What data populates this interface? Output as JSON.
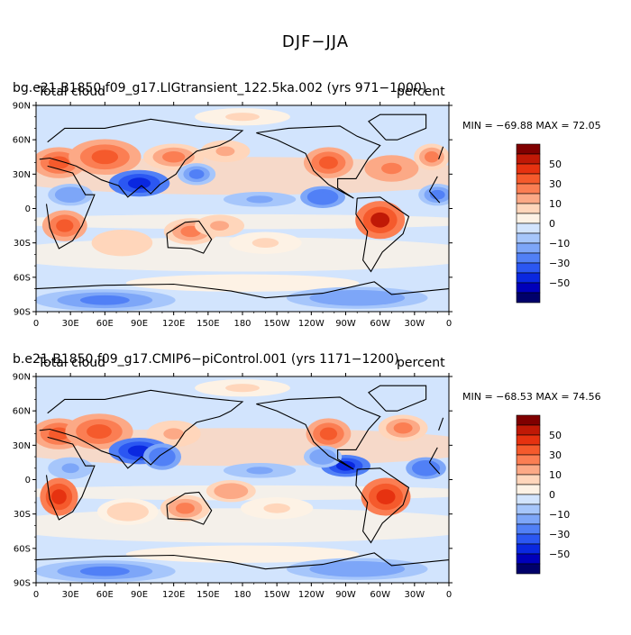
{
  "figure": {
    "title": "DJF−JJA"
  },
  "colorbar": {
    "colors": [
      "#00006a",
      "#0000ba",
      "#0a28e0",
      "#2b57f2",
      "#5180f6",
      "#7da6f8",
      "#a6c6fb",
      "#d2e4fd",
      "#fdf2e5",
      "#ffd6bb",
      "#fca986",
      "#fb7e53",
      "#f55a2c",
      "#e63210",
      "#c01906",
      "#800000"
    ],
    "labels": [
      "−50",
      "−30",
      "−10",
      "0",
      "10",
      "30",
      "50"
    ]
  },
  "chart_data": [
    {
      "type": "heatmap",
      "title": "bg.e21.B1850.f09_g17.LIGtransient_122.5ka.002 (yrs 971−1000)",
      "variable": "Total cloud",
      "units": "percent",
      "stats": "MIN = −69.88  MAX =  72.05",
      "min": -69.88,
      "max": 72.05,
      "xlim": [
        0,
        360
      ],
      "ylim": [
        -90,
        90
      ],
      "xticks": [
        "0",
        "30E",
        "60E",
        "90E",
        "120E",
        "150E",
        "180",
        "150W",
        "120W",
        "90W",
        "60W",
        "30W",
        "0"
      ],
      "yticks": [
        "90N",
        "60N",
        "30N",
        "0",
        "30S",
        "60S",
        "90S"
      ],
      "blobs": [
        {
          "lon": 20,
          "lat": 40,
          "value": 42,
          "rx": 22,
          "ry": 12
        },
        {
          "lon": 60,
          "lat": 45,
          "value": 45,
          "rx": 30,
          "ry": 14
        },
        {
          "lon": 120,
          "lat": 45,
          "value": 32,
          "rx": 25,
          "ry": 10
        },
        {
          "lon": 165,
          "lat": 50,
          "value": 25,
          "rx": 20,
          "ry": 8
        },
        {
          "lon": 255,
          "lat": 40,
          "value": 42,
          "rx": 20,
          "ry": 12
        },
        {
          "lon": 310,
          "lat": 35,
          "value": 38,
          "rx": 22,
          "ry": 10
        },
        {
          "lon": 345,
          "lat": 45,
          "value": 30,
          "rx": 14,
          "ry": 10
        },
        {
          "lon": 90,
          "lat": 22,
          "value": -55,
          "rx": 25,
          "ry": 10
        },
        {
          "lon": 30,
          "lat": 12,
          "value": -30,
          "rx": 18,
          "ry": 8
        },
        {
          "lon": 140,
          "lat": 30,
          "value": -35,
          "rx": 15,
          "ry": 8
        },
        {
          "lon": 250,
          "lat": 10,
          "value": -40,
          "rx": 18,
          "ry": 8
        },
        {
          "lon": 350,
          "lat": 12,
          "value": -35,
          "rx": 15,
          "ry": 8
        },
        {
          "lon": 195,
          "lat": 8,
          "value": -25,
          "rx": 30,
          "ry": 5
        },
        {
          "lon": 25,
          "lat": -15,
          "value": 45,
          "rx": 18,
          "ry": 12
        },
        {
          "lon": 300,
          "lat": -10,
          "value": 60,
          "rx": 20,
          "ry": 15
        },
        {
          "lon": 135,
          "lat": -20,
          "value": 32,
          "rx": 22,
          "ry": 10
        },
        {
          "lon": 160,
          "lat": -15,
          "value": 25,
          "rx": 20,
          "ry": 8
        },
        {
          "lon": 75,
          "lat": -30,
          "value": 18,
          "rx": 25,
          "ry": 10
        },
        {
          "lon": 200,
          "lat": -30,
          "value": 12,
          "rx": 30,
          "ry": 8
        },
        {
          "lon": 180,
          "lat": -65,
          "value": 8,
          "rx": 100,
          "ry": 6
        },
        {
          "lon": 60,
          "lat": -80,
          "value": -35,
          "rx": 60,
          "ry": 8
        },
        {
          "lon": 280,
          "lat": -78,
          "value": -30,
          "rx": 60,
          "ry": 8
        },
        {
          "lon": 180,
          "lat": 80,
          "value": 10,
          "rx": 40,
          "ry": 6
        }
      ]
    },
    {
      "type": "heatmap",
      "title": "b.e21.B1850.f09_g17.CMIP6−piControl.001 (yrs 1171−1200)",
      "variable": "Total cloud",
      "units": "percent",
      "stats": "MIN = −68.53  MAX =  74.56",
      "min": -68.53,
      "max": 74.56,
      "xlim": [
        0,
        360
      ],
      "ylim": [
        -90,
        90
      ],
      "xticks": [
        "0",
        "30E",
        "60E",
        "90E",
        "120E",
        "150E",
        "180",
        "150W",
        "120W",
        "90W",
        "60W",
        "30W",
        "0"
      ],
      "yticks": [
        "90N",
        "60N",
        "30N",
        "0",
        "30S",
        "60S",
        "90S"
      ],
      "blobs": [
        {
          "lon": 20,
          "lat": 40,
          "value": 48,
          "rx": 22,
          "ry": 12
        },
        {
          "lon": 55,
          "lat": 42,
          "value": 45,
          "rx": 28,
          "ry": 14
        },
        {
          "lon": 120,
          "lat": 40,
          "value": 22,
          "rx": 22,
          "ry": 10
        },
        {
          "lon": 255,
          "lat": 40,
          "value": 40,
          "rx": 18,
          "ry": 12
        },
        {
          "lon": 320,
          "lat": 45,
          "value": 30,
          "rx": 20,
          "ry": 10
        },
        {
          "lon": 90,
          "lat": 25,
          "value": -60,
          "rx": 25,
          "ry": 10
        },
        {
          "lon": 110,
          "lat": 20,
          "value": -40,
          "rx": 15,
          "ry": 10
        },
        {
          "lon": 30,
          "lat": 10,
          "value": -25,
          "rx": 18,
          "ry": 8
        },
        {
          "lon": 270,
          "lat": 12,
          "value": -55,
          "rx": 20,
          "ry": 8
        },
        {
          "lon": 250,
          "lat": 20,
          "value": -30,
          "rx": 15,
          "ry": 8
        },
        {
          "lon": 340,
          "lat": 10,
          "value": -40,
          "rx": 16,
          "ry": 8
        },
        {
          "lon": 195,
          "lat": 8,
          "value": -25,
          "rx": 30,
          "ry": 5
        },
        {
          "lon": 20,
          "lat": -15,
          "value": 55,
          "rx": 15,
          "ry": 15
        },
        {
          "lon": 305,
          "lat": -15,
          "value": 55,
          "rx": 20,
          "ry": 15
        },
        {
          "lon": 130,
          "lat": -25,
          "value": 30,
          "rx": 20,
          "ry": 10
        },
        {
          "lon": 170,
          "lat": -10,
          "value": 28,
          "rx": 20,
          "ry": 8
        },
        {
          "lon": 210,
          "lat": -25,
          "value": 12,
          "rx": 30,
          "ry": 8
        },
        {
          "lon": 80,
          "lat": -28,
          "value": 15,
          "rx": 25,
          "ry": 10
        },
        {
          "lon": 180,
          "lat": -65,
          "value": 8,
          "rx": 100,
          "ry": 6
        },
        {
          "lon": 60,
          "lat": -80,
          "value": -35,
          "rx": 60,
          "ry": 8
        },
        {
          "lon": 280,
          "lat": -78,
          "value": -30,
          "rx": 60,
          "ry": 8
        },
        {
          "lon": 180,
          "lat": 80,
          "value": 12,
          "rx": 40,
          "ry": 6
        }
      ]
    }
  ]
}
